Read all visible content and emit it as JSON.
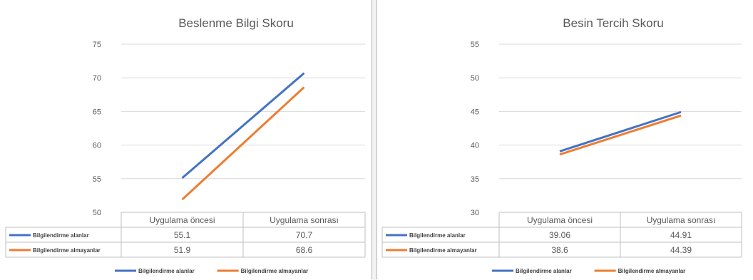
{
  "colors": {
    "series1": "#4472C4",
    "series2": "#ED7D31",
    "grid": "#D9D9D9",
    "text": "#595959"
  },
  "chart_data": [
    {
      "type": "line",
      "title": "Beslenme Bilgi Skoru",
      "categories": [
        "Uygulama öncesi",
        "Uygulama sonrası"
      ],
      "series": [
        {
          "name": "Bilgilendirme alanlar",
          "values": [
            55.1,
            70.7
          ],
          "value_labels": [
            "55.1",
            "70.7"
          ]
        },
        {
          "name": "Bilgilendirme almayanlar",
          "values": [
            51.9,
            68.6
          ],
          "value_labels": [
            "51.9",
            "68.6"
          ]
        }
      ],
      "ylim": [
        50,
        75
      ],
      "yticks": [
        50,
        55,
        60,
        65,
        70,
        75
      ],
      "grid": true,
      "data_table": true,
      "legend": "bottom"
    },
    {
      "type": "line",
      "title": "Besin Tercih Skoru",
      "categories": [
        "Uygulama öncesi",
        "Uygulama sonrası"
      ],
      "series": [
        {
          "name": "Bilgilendirme alanlar",
          "values": [
            39.06,
            44.91
          ],
          "value_labels": [
            "39.06",
            "44.91"
          ]
        },
        {
          "name": "Bilgilendirme almayanlar",
          "values": [
            38.6,
            44.39
          ],
          "value_labels": [
            "38.6",
            "44.39"
          ]
        }
      ],
      "ylim": [
        30,
        55
      ],
      "yticks": [
        30,
        35,
        40,
        45,
        50,
        55
      ],
      "grid": true,
      "data_table": true,
      "legend": "bottom"
    }
  ]
}
